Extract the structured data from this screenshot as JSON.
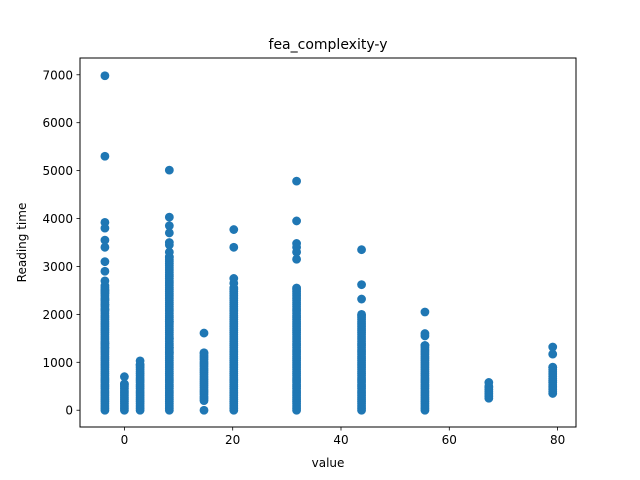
{
  "chart_data": {
    "type": "scatter",
    "title": "fea_complexity-y",
    "xlabel": "value",
    "ylabel": "Reading time",
    "xlim": [
      -8.2,
      83.4
    ],
    "ylim": [
      -350,
      7350
    ],
    "xticks": [
      0,
      20,
      40,
      60,
      80
    ],
    "yticks": [
      0,
      1000,
      2000,
      3000,
      4000,
      5000,
      6000,
      7000
    ],
    "grid": false,
    "legend": "none",
    "marker_color": "#1f77b4",
    "series": [
      {
        "columns": [
          {
            "x": -3.6,
            "dense_min": 0,
            "dense_max": 2600,
            "sparse": [
              6980,
              5300,
              3920,
              3800,
              3550,
              3400,
              3100,
              2900,
              2700,
              2500,
              2450,
              2300,
              2200,
              2100,
              1400,
              1300
            ]
          },
          {
            "x": 0,
            "dense_min": 0,
            "dense_max": 550,
            "sparse": [
              700
            ]
          },
          {
            "x": 2.9,
            "dense_min": 0,
            "dense_max": 950,
            "sparse": [
              1030
            ]
          },
          {
            "x": 8.3,
            "dense_min": 0,
            "dense_max": 3200,
            "sparse": [
              5010,
              4030,
              3850,
              3700,
              3500,
              3450,
              3300,
              1850,
              1500,
              1300,
              1200
            ]
          },
          {
            "x": 14.7,
            "dense_min": 200,
            "dense_max": 1200,
            "sparse": [
              1610,
              0
            ]
          },
          {
            "x": 20.2,
            "dense_min": 0,
            "dense_max": 2550,
            "sparse": [
              3770,
              3400,
              2750,
              2650
            ]
          },
          {
            "x": 31.8,
            "dense_min": 0,
            "dense_max": 2550,
            "sparse": [
              4780,
              3950,
              3480,
              3400,
              3300,
              3150
            ]
          },
          {
            "x": 43.8,
            "dense_min": 0,
            "dense_max": 2000,
            "sparse": [
              3350,
              2620,
              2320
            ]
          },
          {
            "x": 55.5,
            "dense_min": 0,
            "dense_max": 1350,
            "sparse": [
              2050,
              1600,
              1550
            ]
          },
          {
            "x": 67.3,
            "dense_min": 250,
            "dense_max": 500,
            "sparse": [
              580
            ]
          },
          {
            "x": 79.1,
            "dense_min": 350,
            "dense_max": 900,
            "sparse": [
              1320,
              1170
            ]
          }
        ]
      }
    ]
  }
}
